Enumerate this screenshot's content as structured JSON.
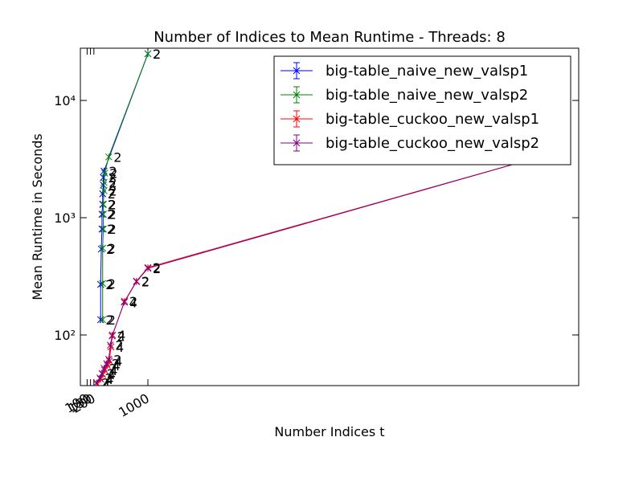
{
  "chart_data": {
    "type": "line",
    "title": "Number of Indices to Mean Runtime - Threads: 8",
    "x_label": "Number Indices t",
    "y_label": "Mean Runtime in Seconds",
    "log_y": true,
    "xlim": [
      0,
      7380
    ],
    "ylim": [
      37,
      27900
    ],
    "xticks": [
      100,
      150,
      200,
      1000
    ],
    "yticks": [
      {
        "value": 100,
        "label": "10²"
      },
      {
        "value": 1000,
        "label": "10³"
      },
      {
        "value": 10000,
        "label": "10⁴"
      }
    ],
    "legend": "upper right",
    "series": [
      {
        "name": "big-table_naive_new_valsp1",
        "color": "#0000ff",
        "x": [
          300,
          300,
          310,
          320,
          320,
          330,
          330,
          340,
          340,
          350,
          1000
        ],
        "values": [
          135,
          270,
          540,
          800,
          1070,
          1300,
          1600,
          1900,
          2200,
          2500,
          25000
        ],
        "point_labels": [
          "2",
          "2",
          "2",
          "2",
          "2",
          "2",
          "2",
          "2",
          "2",
          "2",
          "2"
        ]
      },
      {
        "name": "big-table_naive_new_valsp2",
        "color": "#008000",
        "x": [
          330,
          330,
          330,
          340,
          340,
          340,
          350,
          350,
          360,
          420,
          1000
        ],
        "values": [
          135,
          275,
          550,
          800,
          1070,
          1300,
          1700,
          2000,
          2400,
          3300,
          25000
        ],
        "point_labels": [
          "2",
          "2",
          "2",
          "2",
          "2",
          "2",
          "2",
          "2",
          "2",
          "2",
          "2"
        ]
      },
      {
        "name": "big-table_cuckoo_new_valsp1",
        "color": "#ff0000",
        "x": [
          250,
          300,
          330,
          360,
          400,
          430,
          452,
          476,
          655,
          833,
          1000,
          7024
        ],
        "values": [
          38,
          42,
          46,
          50,
          55,
          60,
          79,
          100,
          194,
          288,
          376,
          3590
        ],
        "point_labels": [
          "4",
          "4",
          "4",
          "4",
          "4",
          "4",
          "4",
          "4",
          "2",
          "2",
          "2",
          "2"
        ]
      },
      {
        "name": "big-table_cuckoo_new_valsp2",
        "color": "#800080",
        "x": [
          240,
          290,
          320,
          350,
          390,
          420,
          445,
          470,
          650,
          830,
          1000,
          7024
        ],
        "values": [
          39,
          43,
          47,
          52,
          57,
          62,
          82,
          98,
          190,
          285,
          370,
          3590
        ],
        "point_labels": [
          "2",
          "2",
          "2",
          "2",
          "2",
          "2",
          "2",
          "2",
          "4",
          "2",
          "2",
          "2"
        ]
      }
    ]
  }
}
